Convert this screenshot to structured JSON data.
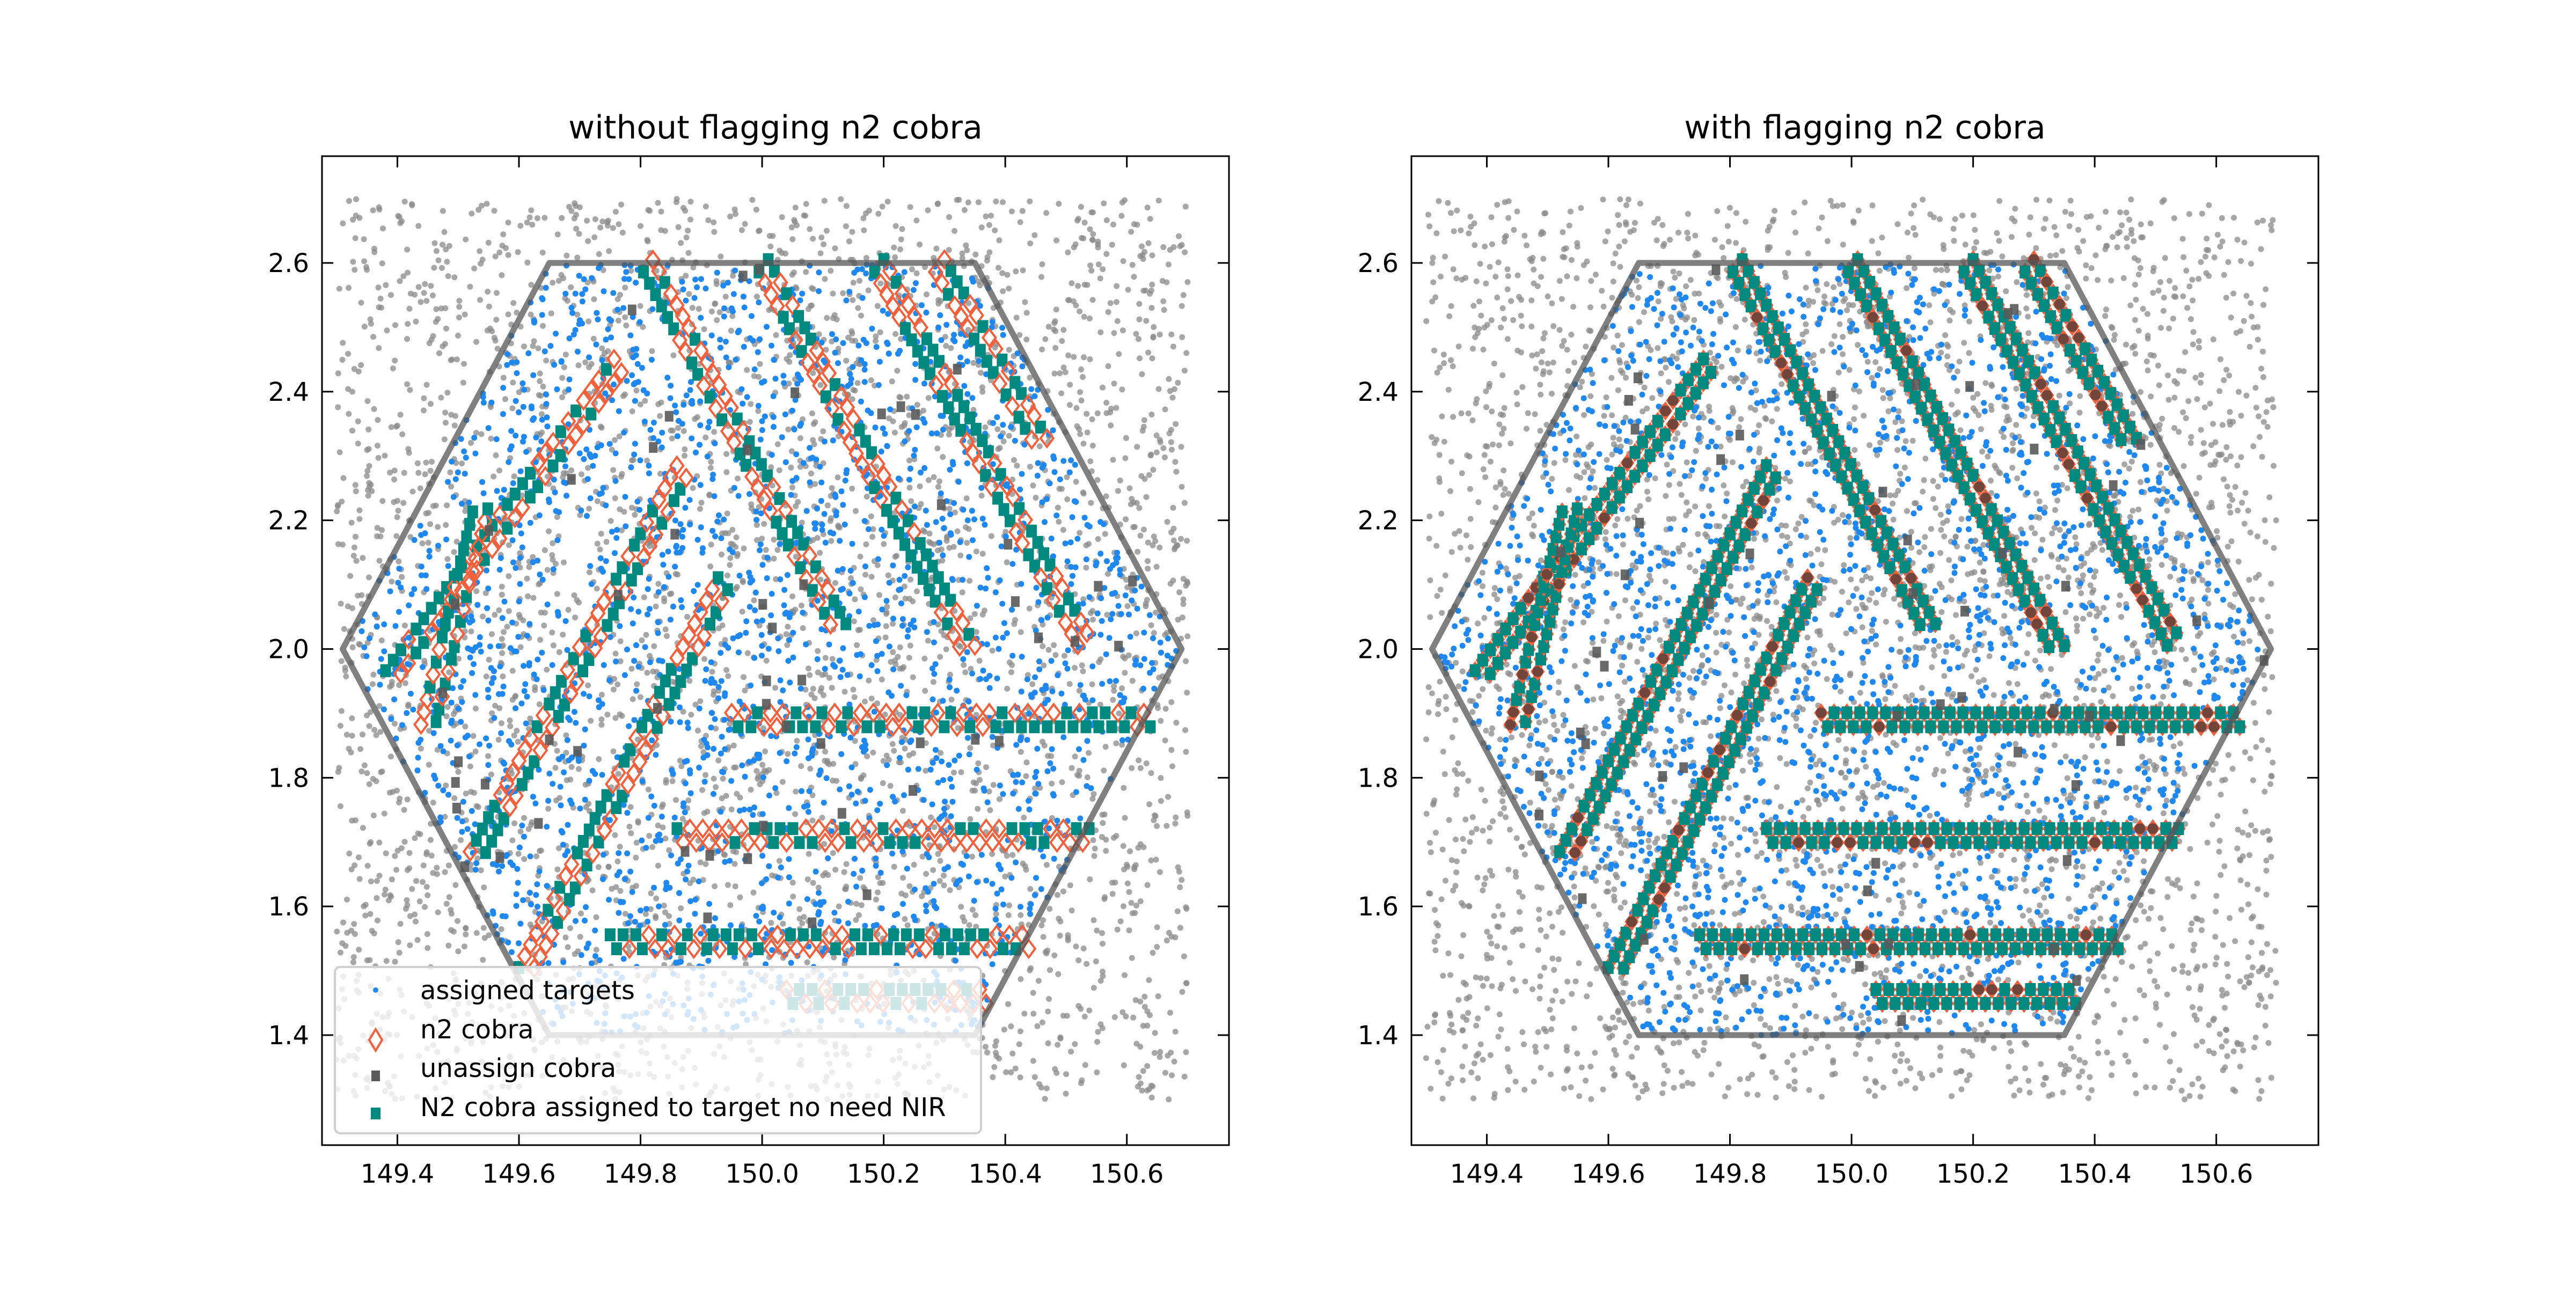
{
  "chart_data": [
    {
      "type": "scatter",
      "title": "without flagging n2 cobra",
      "xlim": [
        149.276,
        150.768
      ],
      "ylim": [
        1.229,
        2.766
      ],
      "xticks": [
        "149.4",
        "149.6",
        "149.8",
        "150.0",
        "150.2",
        "150.4",
        "150.6"
      ],
      "yticks": [
        "1.4",
        "1.6",
        "1.8",
        "2.0",
        "2.2",
        "2.4",
        "2.6"
      ],
      "mode": "without_flag",
      "seed": 11,
      "legend": {
        "placement": "lower-left",
        "entries": [
          "assigned targets",
          "n2 cobra",
          "unassign cobra",
          "N2 cobra assigned to target no need NIR"
        ]
      }
    },
    {
      "type": "scatter",
      "title": "with flagging n2 cobra",
      "xlim": [
        149.276,
        150.768
      ],
      "ylim": [
        1.229,
        2.766
      ],
      "xticks": [
        "149.4",
        "149.6",
        "149.8",
        "150.0",
        "150.2",
        "150.4",
        "150.6"
      ],
      "yticks": [
        "1.4",
        "1.6",
        "1.8",
        "2.0",
        "2.2",
        "2.4",
        "2.6"
      ],
      "mode": "with_flag",
      "seed": 29
    }
  ],
  "field": {
    "hexagon": [
      [
        149.65,
        2.6
      ],
      [
        150.35,
        2.6
      ],
      [
        150.69,
        2.0
      ],
      [
        150.35,
        1.4
      ],
      [
        149.65,
        1.4
      ],
      [
        149.31,
        2.0
      ]
    ],
    "background_targets": {
      "xrange": [
        149.3,
        150.7
      ],
      "yrange": [
        1.3,
        2.7
      ],
      "count": 3600
    },
    "assigned_targets_count": 2200,
    "unassign_cobra_count": 55,
    "cobra_strips": [
      [
        [
          149.81,
          2.6
        ],
        [
          150.13,
          2.03
        ]
      ],
      [
        [
          150.0,
          2.6
        ],
        [
          150.34,
          2.0
        ]
      ],
      [
        [
          150.19,
          2.6
        ],
        [
          150.53,
          2.01
        ]
      ],
      [
        [
          150.29,
          2.6
        ],
        [
          150.46,
          2.32
        ]
      ],
      [
        [
          149.39,
          1.96
        ],
        [
          149.77,
          2.45
        ]
      ],
      [
        [
          149.45,
          1.88
        ],
        [
          149.54,
          2.23
        ]
      ],
      [
        [
          149.53,
          1.68
        ],
        [
          149.87,
          2.28
        ]
      ],
      [
        [
          149.61,
          1.5
        ],
        [
          149.94,
          2.11
        ]
      ],
      [
        [
          149.95,
          1.89
        ],
        [
          150.64,
          1.89
        ]
      ],
      [
        [
          149.86,
          1.71
        ],
        [
          150.54,
          1.71
        ]
      ],
      [
        [
          149.75,
          1.545
        ],
        [
          150.44,
          1.545
        ]
      ],
      [
        [
          150.04,
          1.46
        ],
        [
          150.37,
          1.46
        ]
      ]
    ]
  },
  "colors": {
    "assigned": "#1e88f0",
    "background": "#8a8a8a",
    "n2": "#f4603c",
    "unassign": "#5a5a5a",
    "teal": "#00897f",
    "hexagon": "#555555"
  }
}
